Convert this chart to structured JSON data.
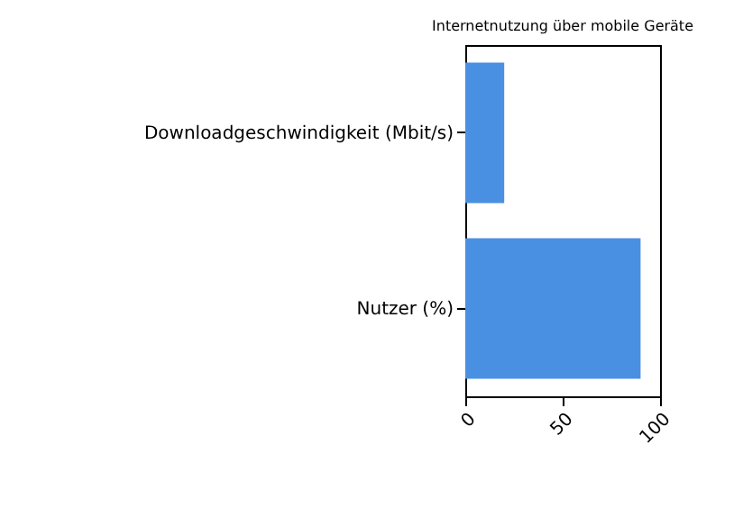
{
  "chart_data": {
    "type": "bar",
    "orientation": "horizontal",
    "title": "Internetnutzung über mobile Geräte",
    "categories": [
      "Downloadgeschwindigkeit (Mbit/s)",
      "Nutzer (%)"
    ],
    "values": [
      20,
      90
    ],
    "color": "#4a90e2",
    "xlim": [
      0,
      100
    ],
    "xticks": [
      0,
      50,
      100
    ],
    "grid": false
  }
}
